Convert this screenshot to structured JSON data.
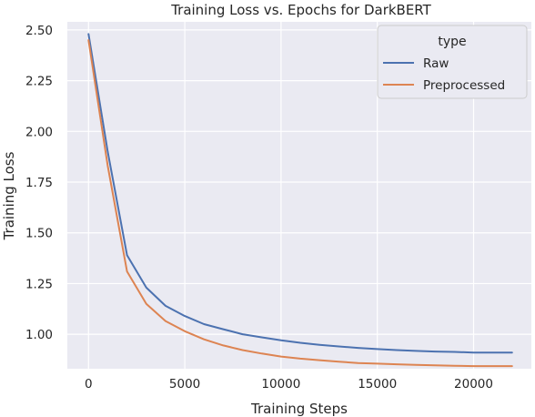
{
  "chart_data": {
    "type": "line",
    "title": "Training Loss vs. Epochs for DarkBERT",
    "xlabel": "Training Steps",
    "ylabel": "Training Loss",
    "xlim": [
      -1100,
      23000
    ],
    "ylim": [
      0.83,
      2.54
    ],
    "xticks": [
      0,
      5000,
      10000,
      15000,
      20000
    ],
    "xtick_labels": [
      "0",
      "5000",
      "10000",
      "15000",
      "20000"
    ],
    "yticks": [
      1.0,
      1.25,
      1.5,
      1.75,
      2.0,
      2.25,
      2.5
    ],
    "ytick_labels": [
      "1.00",
      "1.25",
      "1.50",
      "1.75",
      "2.00",
      "2.25",
      "2.50"
    ],
    "grid": true,
    "legend": {
      "title": "type",
      "placement": "top-right"
    },
    "series": [
      {
        "name": "Raw",
        "color": "#4c72b0",
        "x": [
          0,
          1000,
          2000,
          3000,
          4000,
          5000,
          6000,
          7000,
          8000,
          9000,
          10000,
          11000,
          12000,
          13000,
          14000,
          15000,
          16000,
          17000,
          18000,
          19000,
          20000,
          21000,
          22000
        ],
        "y": [
          2.48,
          1.9,
          1.39,
          1.23,
          1.14,
          1.09,
          1.05,
          1.025,
          1.0,
          0.985,
          0.97,
          0.958,
          0.948,
          0.94,
          0.933,
          0.927,
          0.922,
          0.918,
          0.915,
          0.913,
          0.91,
          0.91,
          0.91
        ]
      },
      {
        "name": "Preprocessed",
        "color": "#dd8452",
        "x": [
          0,
          1000,
          2000,
          3000,
          4000,
          5000,
          6000,
          7000,
          8000,
          9000,
          10000,
          11000,
          12000,
          13000,
          14000,
          15000,
          16000,
          17000,
          18000,
          19000,
          20000,
          21000,
          22000
        ],
        "y": [
          2.45,
          1.83,
          1.31,
          1.15,
          1.065,
          1.015,
          0.975,
          0.945,
          0.922,
          0.905,
          0.89,
          0.88,
          0.872,
          0.865,
          0.858,
          0.855,
          0.852,
          0.849,
          0.847,
          0.845,
          0.843,
          0.843,
          0.843
        ]
      }
    ]
  }
}
